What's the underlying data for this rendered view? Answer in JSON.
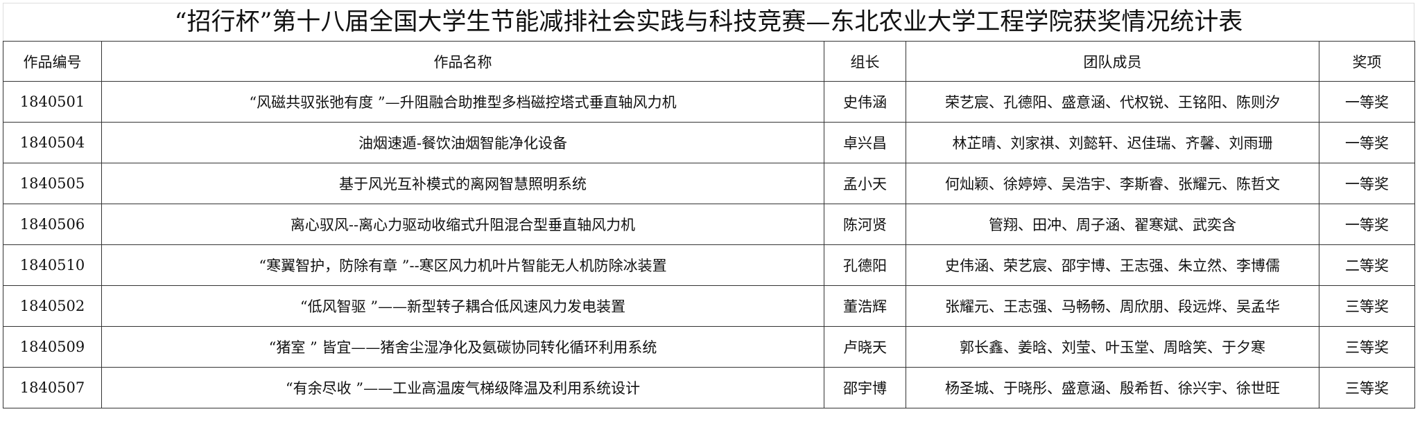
{
  "title": "“招行杯”第十八届全国大学生节能减排社会实践与科技竞赛—东北农业大学工程学院获奖情况统计表",
  "headers": [
    "作品编号",
    "作品名称",
    "组长",
    "团队成员",
    "奖项"
  ],
  "rows": [
    {
      "id": "1840501",
      "name": "“风磁共驭张弛有度 ”—升阻融合助推型多档磁控塔式垂直轴风力机",
      "leader": "史伟涵",
      "members": "荣艺宸、孔德阳、盛意涵、代权锐、王铭阳、陈则汐",
      "award": "一等奖"
    },
    {
      "id": "1840504",
      "name": "油烟速遁-餐饮油烟智能净化设备",
      "leader": "卓兴昌",
      "members": "林芷晴、刘家祺、刘懿轩、迟佳瑞、齐馨、刘雨珊",
      "award": "一等奖"
    },
    {
      "id": "1840505",
      "name": "基于风光互补模式的离网智慧照明系统",
      "leader": "孟小天",
      "members": "何灿颖、徐婷婷、吴浩宇、李斯睿、张耀元、陈哲文",
      "award": "一等奖"
    },
    {
      "id": "1840506",
      "name": "离心驭风--离心力驱动收缩式升阻混合型垂直轴风力机",
      "leader": "陈河贤",
      "members": "管翔、田冲、周子涵、翟寒斌、武奕含",
      "award": "一等奖"
    },
    {
      "id": "1840510",
      "name": "“寒翼智护，防除有章 ”--寒区风力机叶片智能无人机防除冰装置",
      "leader": "孔德阳",
      "members": "史伟涵、荣艺宸、邵宇博、王志强、朱立然、李博儒",
      "award": "二等奖"
    },
    {
      "id": "1840502",
      "name": "“低风智驱 ”——新型转子耦合低风速风力发电装置",
      "leader": "董浩辉",
      "members": "张耀元、王志强、马畅畅、周欣朋、段远烨、吴孟华",
      "award": "三等奖"
    },
    {
      "id": "1840509",
      "name": "“猪室 ” 皆宜——猪舍尘湿净化及氨碳协同转化循环利用系统",
      "leader": "卢晓天",
      "members": "郭长鑫、姜晗、刘莹、叶玉堂、周晗笑、于夕寒",
      "award": "三等奖"
    },
    {
      "id": "1840507",
      "name": "“有余尽收 ”——工业高温废气梯级降温及利用系统设计",
      "leader": "邵宇博",
      "members": "杨圣城、于晓彤、盛意涵、殷希哲、徐兴宇、徐世旺",
      "award": "三等奖"
    }
  ]
}
